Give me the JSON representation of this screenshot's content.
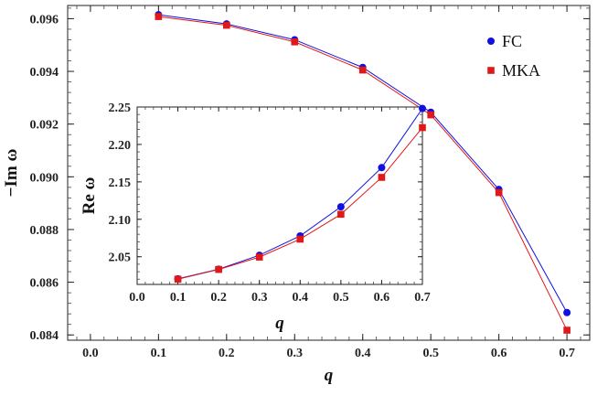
{
  "chart_data": [
    {
      "id": "main",
      "type": "line",
      "title": "",
      "xlabel": "q",
      "ylabel": "−Im ω",
      "xlim": [
        -0.02,
        0.72
      ],
      "ylim": [
        0.0838,
        0.0965
      ],
      "x_ticks": [
        {
          "v": 0.0,
          "label": "0.0"
        },
        {
          "v": 0.1,
          "label": "0.1"
        },
        {
          "v": 0.2,
          "label": "0.2"
        },
        {
          "v": 0.3,
          "label": "0.3"
        },
        {
          "v": 0.4,
          "label": "0.4"
        },
        {
          "v": 0.5,
          "label": "0.5"
        },
        {
          "v": 0.6,
          "label": "0.6"
        },
        {
          "v": 0.7,
          "label": "0.7"
        }
      ],
      "y_ticks": [
        {
          "v": 0.084,
          "label": "0.084"
        },
        {
          "v": 0.086,
          "label": "0.086"
        },
        {
          "v": 0.088,
          "label": "0.088"
        },
        {
          "v": 0.09,
          "label": "0.090"
        },
        {
          "v": 0.092,
          "label": "0.092"
        },
        {
          "v": 0.094,
          "label": "0.094"
        },
        {
          "v": 0.096,
          "label": "0.096"
        }
      ],
      "legend_position": "top-right",
      "series": [
        {
          "name": "FC",
          "color": "#1010e0",
          "marker": "circle",
          "x": [
            0.1,
            0.2,
            0.3,
            0.4,
            0.5,
            0.6,
            0.7
          ],
          "y": [
            0.09615,
            0.0958,
            0.0952,
            0.09415,
            0.09245,
            0.08952,
            0.08485
          ]
        },
        {
          "name": "MKA",
          "color": "#e01818",
          "marker": "square",
          "x": [
            0.1,
            0.2,
            0.3,
            0.4,
            0.5,
            0.6,
            0.7
          ],
          "y": [
            0.09608,
            0.09575,
            0.09512,
            0.09405,
            0.09235,
            0.0894,
            0.08418
          ]
        }
      ]
    },
    {
      "id": "inset",
      "type": "line",
      "title": "",
      "xlabel": "q",
      "ylabel": "Re ω",
      "xlim": [
        0.0,
        0.7
      ],
      "ylim": [
        2.013,
        2.25
      ],
      "x_ticks": [
        {
          "v": 0.0,
          "label": "0.0"
        },
        {
          "v": 0.1,
          "label": "0.1"
        },
        {
          "v": 0.2,
          "label": "0.2"
        },
        {
          "v": 0.3,
          "label": "0.3"
        },
        {
          "v": 0.4,
          "label": "0.4"
        },
        {
          "v": 0.5,
          "label": "0.5"
        },
        {
          "v": 0.6,
          "label": "0.6"
        },
        {
          "v": 0.7,
          "label": "0.7"
        }
      ],
      "y_ticks": [
        {
          "v": 2.05,
          "label": "2.05"
        },
        {
          "v": 2.1,
          "label": "2.10"
        },
        {
          "v": 2.15,
          "label": "2.15"
        },
        {
          "v": 2.2,
          "label": "2.20"
        },
        {
          "v": 2.25,
          "label": "2.25"
        }
      ],
      "series": [
        {
          "name": "FC",
          "color": "#1010e0",
          "marker": "circle",
          "x": [
            0.1,
            0.2,
            0.3,
            0.4,
            0.5,
            0.6,
            0.7
          ],
          "y": [
            2.0205,
            2.0333,
            2.052,
            2.0778,
            2.1167,
            2.169,
            2.248
          ]
        },
        {
          "name": "MKA",
          "color": "#e01818",
          "marker": "square",
          "x": [
            0.1,
            0.2,
            0.3,
            0.4,
            0.5,
            0.6,
            0.7
          ],
          "y": [
            2.02,
            2.033,
            2.0495,
            2.0735,
            2.1067,
            2.156,
            2.2225
          ]
        }
      ]
    }
  ]
}
